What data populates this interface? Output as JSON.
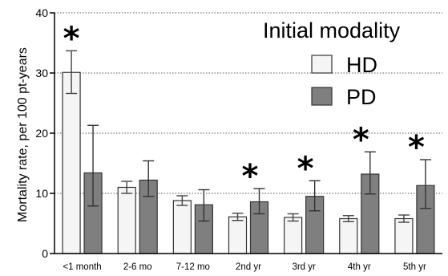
{
  "chart_data": {
    "type": "bar",
    "title": "Initial modality",
    "ylabel": "Mortality rate, per 100 pt-years",
    "xlabel": "",
    "ylim": [
      0,
      40
    ],
    "yticks": [
      "0",
      "10",
      "20",
      "30",
      "40"
    ],
    "grid": "horizontal dotted",
    "legend_position": "top-right",
    "categories": [
      "<1 month",
      "2-6 mo",
      "7-12 mo",
      "2nd yr",
      "3rd yr",
      "4th yr",
      "5th yr"
    ],
    "series": [
      {
        "name": "HD",
        "color": "#f5f5f5",
        "values": [
          30.1,
          11.0,
          8.8,
          6.1,
          6.0,
          5.8,
          5.8
        ],
        "err_low": [
          26.6,
          10.0,
          8.0,
          5.5,
          5.4,
          5.3,
          5.2
        ],
        "err_high": [
          33.7,
          12.0,
          9.6,
          6.7,
          6.6,
          6.3,
          6.4
        ]
      },
      {
        "name": "PD",
        "color": "#7f7f7f",
        "values": [
          13.4,
          12.2,
          8.1,
          8.6,
          9.5,
          13.2,
          11.3
        ],
        "err_low": [
          7.9,
          9.5,
          5.4,
          6.6,
          7.1,
          9.9,
          7.5
        ],
        "err_high": [
          21.3,
          15.4,
          10.6,
          10.8,
          12.1,
          16.9,
          15.6
        ]
      }
    ],
    "annotations": [
      {
        "category": "<1 month",
        "text": "*"
      },
      {
        "category": "2nd yr",
        "text": "*"
      },
      {
        "category": "3rd yr",
        "text": "*"
      },
      {
        "category": "4th yr",
        "text": "*"
      },
      {
        "category": "5th yr",
        "text": "*"
      }
    ]
  }
}
